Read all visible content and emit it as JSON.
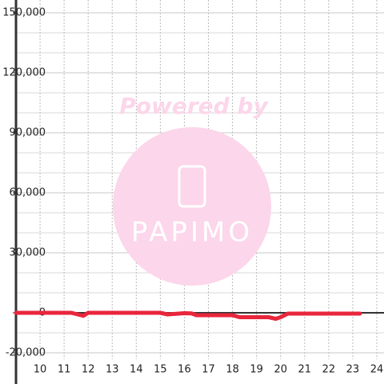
{
  "chart_data": {
    "type": "line",
    "x": [
      9,
      11.3,
      11.8,
      12,
      15,
      15.3,
      16,
      16.3,
      16.5,
      18,
      18.3,
      19.5,
      19.8,
      20,
      20.3,
      23.3
    ],
    "series": [
      {
        "color": "#e8263c",
        "values": [
          0,
          0,
          -1500,
          0,
          0,
          -800,
          -200,
          -300,
          -1200,
          -1200,
          -2200,
          -2200,
          -3000,
          -2200,
          -400,
          -400
        ]
      }
    ],
    "xlim": [
      9,
      24.3
    ],
    "xticks": [
      10,
      11,
      12,
      13,
      14,
      15,
      16,
      17,
      18,
      19,
      20,
      21,
      22,
      23,
      24
    ],
    "ylim": [
      -35600,
      156400
    ],
    "yticks": [
      {
        "value": -20000,
        "label": "-20,000"
      },
      0,
      {
        "value": 30000,
        "label": "30,000"
      },
      {
        "value": 60000,
        "label": "60,000"
      },
      {
        "value": 90000,
        "label": "90,000"
      },
      {
        "value": 120000,
        "label": "120,000"
      },
      {
        "value": 150000,
        "label": "150,000"
      }
    ],
    "minor_yticks": [
      -10000,
      10000,
      20000,
      40000,
      50000,
      70000,
      80000,
      100000,
      110000,
      130000,
      140000
    ],
    "grid": true,
    "watermark": {
      "top": "Powered by",
      "bottom": "PAPIMO"
    }
  }
}
